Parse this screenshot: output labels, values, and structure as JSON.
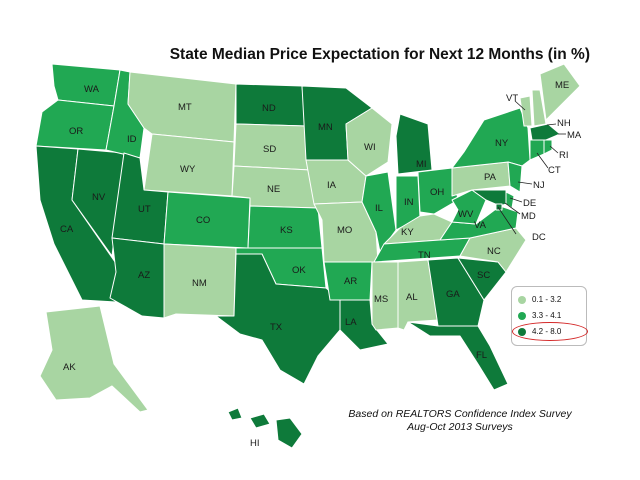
{
  "title": "State Median Price Expectation for Next 12 Months (in %)",
  "note_lines": [
    "Based on REALTORS Confidence Index Survey",
    "Aug-Oct 2013 Surveys"
  ],
  "colors": {
    "low": "#a8d5a2",
    "mid": "#21a853",
    "high": "#0e7a3a",
    "border": "#ffffff"
  },
  "legend": [
    {
      "label": "0.1 - 3.2",
      "color": "#a8d5a2"
    },
    {
      "label": "3.3 - 4.1",
      "color": "#21a853"
    },
    {
      "label": "4.2 - 8.0",
      "color": "#0e7a3a",
      "highlighted": true
    }
  ],
  "states": {
    "WA": "mid",
    "OR": "mid",
    "CA": "high",
    "NV": "high",
    "ID": "mid",
    "MT": "low",
    "WY": "low",
    "UT": "high",
    "AZ": "high",
    "CO": "mid",
    "NM": "low",
    "ND": "high",
    "SD": "low",
    "NE": "low",
    "KS": "mid",
    "OK": "mid",
    "TX": "high",
    "MN": "high",
    "IA": "low",
    "MO": "low",
    "AR": "mid",
    "LA": "high",
    "WI": "low",
    "IL": "mid",
    "MI": "high",
    "IN": "mid",
    "OH": "mid",
    "KY": "low",
    "TN": "mid",
    "MS": "low",
    "AL": "low",
    "GA": "high",
    "FL": "high",
    "SC": "high",
    "NC": "low",
    "VA": "mid",
    "WV": "mid",
    "PA": "low",
    "NY": "mid",
    "VT": "low",
    "NH": "low",
    "ME": "low",
    "MA": "high",
    "RI": "mid",
    "CT": "mid",
    "NJ": "mid",
    "DE": "mid",
    "MD": "high",
    "DC": "high",
    "AK": "low",
    "HI": "high"
  }
}
